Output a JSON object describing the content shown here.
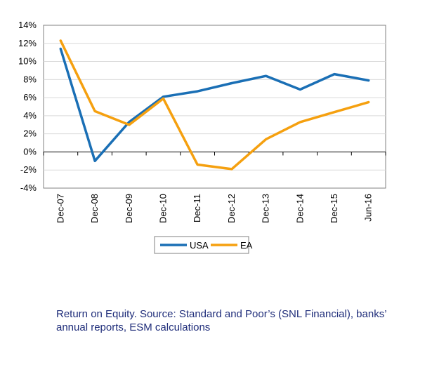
{
  "chart_data": {
    "type": "line",
    "title": "",
    "xlabel": "",
    "ylabel": "",
    "categories": [
      "Dec-07",
      "Dec-08",
      "Dec-09",
      "Dec-10",
      "Dec-11",
      "Dec-12",
      "Dec-13",
      "Dec-14",
      "Dec-15",
      "Jun-16"
    ],
    "y_ticks": [
      "14%",
      "12%",
      "10%",
      "8%",
      "6%",
      "4%",
      "2%",
      "0%",
      "-2%",
      "-4%"
    ],
    "ylim": [
      -4,
      14
    ],
    "grid": true,
    "legend_position": "bottom",
    "series": [
      {
        "name": "USA",
        "color": "#1a6fb5",
        "values": [
          11.4,
          -1.0,
          3.3,
          6.1,
          6.7,
          7.6,
          8.4,
          6.9,
          8.6,
          7.9
        ]
      },
      {
        "name": "EA",
        "color": "#f5a00f",
        "values": [
          12.3,
          4.5,
          3.0,
          5.9,
          -1.4,
          -1.9,
          1.4,
          3.3,
          4.4,
          5.5
        ]
      }
    ]
  },
  "caption": {
    "line1": "Return on Equity. Source: Standard and Poor’s (SNL Financial), banks’",
    "line2": "annual reports, ESM calculations"
  }
}
